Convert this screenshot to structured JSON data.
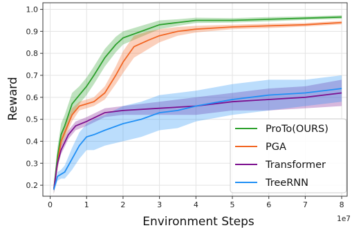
{
  "chart_data": {
    "type": "line",
    "xlabel": "Environment Steps",
    "ylabel": "Reward",
    "x_offset_label": "1e7",
    "xlim": [
      -0.2,
      8.15
    ],
    "ylim": [
      0.15,
      1.03
    ],
    "xticks": [
      "0",
      "1",
      "2",
      "3",
      "4",
      "5",
      "6",
      "7",
      "8"
    ],
    "yticks": [
      "0.2",
      "0.3",
      "0.4",
      "0.5",
      "0.6",
      "0.7",
      "0.8",
      "0.9",
      "1.0"
    ],
    "grid": true,
    "legend_position": "lower-right",
    "series": [
      {
        "name": "ProTo(OURS)",
        "color": "#2ca02c",
        "x": [
          0.1,
          0.2,
          0.3,
          0.4,
          0.5,
          0.6,
          0.8,
          1.0,
          1.2,
          1.5,
          1.8,
          2.0,
          2.5,
          3.0,
          3.5,
          4.0,
          5.0,
          6.0,
          7.0,
          8.0
        ],
        "y": [
          0.18,
          0.33,
          0.43,
          0.47,
          0.52,
          0.57,
          0.61,
          0.65,
          0.7,
          0.78,
          0.84,
          0.87,
          0.9,
          0.93,
          0.94,
          0.95,
          0.95,
          0.955,
          0.96,
          0.965
        ],
        "band": [
          0.02,
          0.04,
          0.05,
          0.05,
          0.05,
          0.05,
          0.04,
          0.04,
          0.04,
          0.04,
          0.035,
          0.03,
          0.025,
          0.02,
          0.015,
          0.012,
          0.01,
          0.01,
          0.008,
          0.008
        ]
      },
      {
        "name": "PGA",
        "color": "#f26522",
        "x": [
          0.1,
          0.2,
          0.3,
          0.4,
          0.5,
          0.6,
          0.8,
          1.0,
          1.2,
          1.5,
          1.8,
          2.0,
          2.3,
          2.7,
          3.0,
          3.5,
          4.0,
          5.0,
          6.0,
          7.0,
          8.0
        ],
        "y": [
          0.18,
          0.3,
          0.4,
          0.44,
          0.48,
          0.52,
          0.56,
          0.57,
          0.58,
          0.62,
          0.7,
          0.76,
          0.83,
          0.86,
          0.88,
          0.9,
          0.91,
          0.92,
          0.925,
          0.93,
          0.94
        ],
        "band": [
          0.02,
          0.03,
          0.03,
          0.03,
          0.03,
          0.03,
          0.02,
          0.02,
          0.02,
          0.03,
          0.04,
          0.05,
          0.05,
          0.04,
          0.03,
          0.02,
          0.015,
          0.01,
          0.01,
          0.008,
          0.008
        ]
      },
      {
        "name": "Transformer",
        "color": "#7b0f8f",
        "x": [
          0.1,
          0.2,
          0.3,
          0.5,
          0.7,
          1.0,
          1.5,
          2.0,
          3.0,
          4.0,
          5.0,
          6.0,
          7.0,
          8.0
        ],
        "y": [
          0.18,
          0.3,
          0.36,
          0.43,
          0.47,
          0.49,
          0.53,
          0.54,
          0.55,
          0.56,
          0.58,
          0.59,
          0.6,
          0.62
        ],
        "band": [
          0.02,
          0.02,
          0.02,
          0.02,
          0.02,
          0.02,
          0.02,
          0.02,
          0.03,
          0.04,
          0.04,
          0.05,
          0.05,
          0.06
        ]
      },
      {
        "name": "TreeRNN",
        "color": "#1f8ff5",
        "x": [
          0.1,
          0.2,
          0.3,
          0.4,
          0.5,
          0.6,
          0.8,
          1.0,
          1.2,
          1.5,
          2.0,
          2.5,
          3.0,
          3.5,
          4.0,
          5.0,
          6.0,
          7.0,
          8.0
        ],
        "y": [
          0.18,
          0.24,
          0.25,
          0.26,
          0.29,
          0.32,
          0.38,
          0.42,
          0.43,
          0.45,
          0.48,
          0.5,
          0.53,
          0.54,
          0.56,
          0.59,
          0.61,
          0.62,
          0.64
        ],
        "band": [
          0.01,
          0.02,
          0.02,
          0.03,
          0.04,
          0.05,
          0.06,
          0.06,
          0.07,
          0.07,
          0.08,
          0.08,
          0.08,
          0.08,
          0.07,
          0.07,
          0.07,
          0.06,
          0.06
        ]
      }
    ]
  }
}
